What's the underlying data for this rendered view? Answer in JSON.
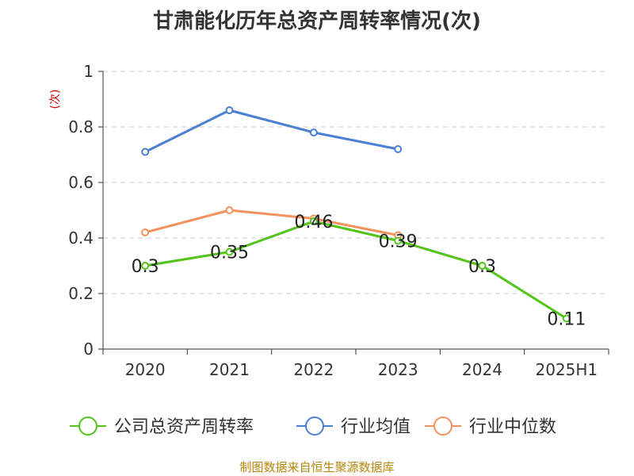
{
  "chart_data": {
    "type": "line",
    "title": "甘肃能化历年总资产周转率情况(次)",
    "ylabel": "(次)",
    "categories": [
      "2020",
      "2021",
      "2022",
      "2023",
      "2024",
      "2025H1"
    ],
    "ylim": [
      0,
      1
    ],
    "yticks": [
      "0",
      "0.2",
      "0.4",
      "0.6",
      "0.8",
      "1"
    ],
    "grid": true,
    "legend_position": "bottom",
    "series": [
      {
        "name": "公司总资产周转率",
        "color": "#52c41a",
        "values": [
          0.3,
          0.35,
          0.46,
          0.39,
          0.3,
          0.11
        ],
        "labels": [
          "0.3",
          "0.35",
          "0.46",
          "0.39",
          "0.3",
          "0.11"
        ]
      },
      {
        "name": "行业均值",
        "color": "#4a7fd6",
        "values": [
          0.71,
          0.86,
          0.78,
          0.72,
          null,
          null
        ]
      },
      {
        "name": "行业中位数",
        "color": "#f4925e",
        "values": [
          0.42,
          0.5,
          0.47,
          0.41,
          null,
          null
        ]
      }
    ],
    "source": "制图数据来自恒生聚源数据库"
  }
}
